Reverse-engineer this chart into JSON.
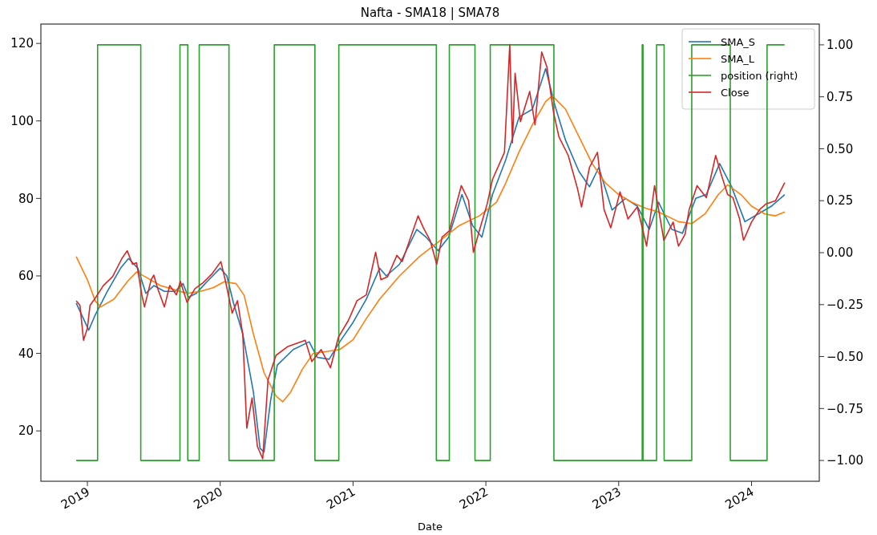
{
  "chart_data": {
    "type": "line",
    "title": "Nafta - SMA18 | SMA78",
    "xlabel": "Date",
    "xlim": [
      2018.65,
      2024.51
    ],
    "xticks": [
      2019,
      2020,
      2021,
      2022,
      2023,
      2024
    ],
    "ylim": [
      7,
      125
    ],
    "yticks": [
      20,
      40,
      60,
      80,
      100,
      120
    ],
    "y2lim": [
      -1.1,
      1.1
    ],
    "y2ticks": [
      {
        "value": -1,
        "label": "−1.00"
      },
      {
        "value": -0.75,
        "label": "−0.75"
      },
      {
        "value": -0.5,
        "label": "−0.50"
      },
      {
        "value": -0.25,
        "label": "−0.25"
      },
      {
        "value": 0,
        "label": "0.00"
      },
      {
        "value": 0.25,
        "label": "0.25"
      },
      {
        "value": 0.5,
        "label": "0.50"
      },
      {
        "value": 0.75,
        "label": "0.75"
      },
      {
        "value": 1,
        "label": "1.00"
      }
    ],
    "legend": "top right",
    "grid": false,
    "series": [
      {
        "name": "SMA_S",
        "color": "#1f77b4",
        "x": [
          2018.916,
          2018.97,
          2019.01,
          2019.06,
          2019.15,
          2019.25,
          2019.31,
          2019.38,
          2019.44,
          2019.5,
          2019.58,
          2019.66,
          2019.72,
          2019.76,
          2019.82,
          2019.9,
          2020.0,
          2020.05,
          2020.1,
          2020.17,
          2020.25,
          2020.3,
          2020.33,
          2020.38,
          2020.43,
          2020.55,
          2020.67,
          2020.73,
          2020.82,
          2020.9,
          2021.0,
          2021.1,
          2021.2,
          2021.25,
          2021.35,
          2021.48,
          2021.55,
          2021.64,
          2021.72,
          2021.82,
          2021.9,
          2021.97,
          2022.05,
          2022.15,
          2022.25,
          2022.35,
          2022.45,
          2022.52,
          2022.6,
          2022.7,
          2022.78,
          2022.85,
          2022.95,
          2023.05,
          2023.14,
          2023.23,
          2023.3,
          2023.4,
          2023.48,
          2023.58,
          2023.66,
          2023.76,
          2023.85,
          2023.95,
          2024.05,
          2024.15,
          2024.25
        ],
        "values": [
          53,
          49,
          46,
          50,
          56,
          62,
          64.5,
          62,
          55.5,
          57.5,
          56,
          56,
          58,
          54.5,
          55.5,
          58.5,
          62,
          60,
          53,
          45,
          30,
          15.5,
          14.5,
          28,
          37,
          41,
          43,
          39,
          38.5,
          43,
          48,
          54,
          62,
          60,
          63,
          72,
          70,
          66.5,
          70,
          81,
          73,
          70,
          81,
          90,
          101,
          103,
          113.5,
          104,
          95,
          87,
          83,
          88,
          77,
          80,
          78,
          72,
          79,
          72,
          71,
          80,
          81,
          89,
          83,
          74,
          76,
          78,
          81
        ]
      },
      {
        "name": "SMA_L",
        "color": "#ff7f0e",
        "x": [
          2018.916,
          2019.0,
          2019.06,
          2019.1,
          2019.2,
          2019.3,
          2019.37,
          2019.45,
          2019.55,
          2019.65,
          2019.75,
          2019.85,
          2019.95,
          2020.03,
          2020.12,
          2020.18,
          2020.25,
          2020.33,
          2020.42,
          2020.47,
          2020.53,
          2020.62,
          2020.7,
          2020.8,
          2020.9,
          2021.0,
          2021.1,
          2021.2,
          2021.35,
          2021.5,
          2021.65,
          2021.8,
          2021.95,
          2022.08,
          2022.15,
          2022.25,
          2022.35,
          2022.45,
          2022.5,
          2022.6,
          2022.7,
          2022.8,
          2022.9,
          2023.0,
          2023.1,
          2023.2,
          2023.3,
          2023.45,
          2023.55,
          2023.65,
          2023.75,
          2023.82,
          2023.92,
          2024.0,
          2024.1,
          2024.18,
          2024.25
        ],
        "values": [
          65,
          59,
          53.5,
          52,
          54,
          58.5,
          61,
          59.5,
          57.5,
          56.5,
          55.5,
          56,
          57,
          58.5,
          58,
          55,
          45,
          35,
          29,
          27.5,
          30,
          36,
          40,
          40.5,
          41,
          43.5,
          49,
          54,
          60,
          65,
          69,
          73,
          75.5,
          79,
          84,
          92,
          99,
          105,
          106.5,
          103,
          96,
          89,
          84,
          81,
          79,
          77.5,
          76.5,
          74,
          73.5,
          76,
          81,
          83.5,
          81,
          78,
          76,
          75.5,
          76.5
        ]
      },
      {
        "name": "position (right)",
        "color": "#2ca02c",
        "type": "step",
        "axis": "y2",
        "x": [
          2018.916,
          2019.077,
          2019.402,
          2019.697,
          2019.756,
          2019.842,
          2020.066,
          2020.407,
          2020.713,
          2020.893,
          2021.627,
          2021.725,
          2021.918,
          2022.033,
          2022.512,
          2023.177,
          2023.183,
          2023.285,
          2023.342,
          2023.55,
          2023.84,
          2024.117,
          2024.249
        ],
        "values": [
          -1,
          1,
          -1,
          1,
          -1,
          1,
          -1,
          1,
          -1,
          1,
          -1,
          1,
          -1,
          1,
          -1,
          1,
          -1,
          1,
          -1,
          1,
          -1,
          1,
          1
        ]
      },
      {
        "name": "Close",
        "color": "#d62728",
        "x": [
          2018.916,
          2018.944,
          2018.971,
          2019.0,
          2019.02,
          2019.06,
          2019.12,
          2019.19,
          2019.26,
          2019.3,
          2019.34,
          2019.37,
          2019.41,
          2019.43,
          2019.48,
          2019.5,
          2019.53,
          2019.58,
          2019.62,
          2019.67,
          2019.7,
          2019.75,
          2019.81,
          2019.87,
          2019.94,
          2020.005,
          2020.04,
          2020.09,
          2020.13,
          2020.17,
          2020.2,
          2020.24,
          2020.28,
          2020.32,
          2020.36,
          2020.42,
          2020.51,
          2020.64,
          2020.69,
          2020.76,
          2020.83,
          2020.89,
          2020.965,
          2021.03,
          2021.1,
          2021.17,
          2021.21,
          2021.26,
          2021.33,
          2021.37,
          2021.49,
          2021.53,
          2021.58,
          2021.63,
          2021.67,
          2021.725,
          2021.815,
          2021.87,
          2021.906,
          2021.95,
          2022.01,
          2022.05,
          2022.14,
          2022.18,
          2022.2,
          2022.22,
          2022.26,
          2022.33,
          2022.37,
          2022.42,
          2022.46,
          2022.51,
          2022.55,
          2022.62,
          2022.69,
          2022.72,
          2022.78,
          2022.84,
          2022.89,
          2022.94,
          2023.01,
          2023.07,
          2023.14,
          2023.21,
          2023.27,
          2023.34,
          2023.41,
          2023.45,
          2023.5,
          2023.53,
          2023.59,
          2023.66,
          2023.73,
          2023.77,
          2023.82,
          2023.86,
          2023.91,
          2023.94,
          2024.0,
          2024.06,
          2024.11,
          2024.18,
          2024.25
        ],
        "values": [
          53.6,
          52.4,
          43.4,
          46.5,
          52.4,
          54.3,
          57.5,
          59.8,
          64.5,
          66.5,
          63,
          63.4,
          55.1,
          52,
          59,
          60.2,
          56.7,
          52,
          57.5,
          55.1,
          58.6,
          53.2,
          56.7,
          58.2,
          60.6,
          63.7,
          58.6,
          50.4,
          53.6,
          44.9,
          20.7,
          28.5,
          16,
          12.8,
          33.2,
          39.5,
          41.8,
          43.4,
          37.9,
          41,
          36.3,
          44.2,
          48.5,
          53.6,
          55.1,
          66.1,
          59,
          59.8,
          65.3,
          63.7,
          75.5,
          72.4,
          69.2,
          63,
          70,
          71.6,
          83.3,
          79.4,
          66.1,
          71.6,
          78.6,
          84.9,
          91.9,
          119.7,
          94.3,
          112.3,
          99.8,
          107.6,
          99,
          117.8,
          113.9,
          102.1,
          95.9,
          91.1,
          82.5,
          77.8,
          88,
          91.9,
          77.1,
          72.4,
          81.7,
          74.7,
          77.8,
          67.7,
          83.3,
          69.2,
          73.9,
          67.7,
          70.8,
          77.1,
          83.3,
          80.2,
          91.1,
          86.4,
          81,
          80.2,
          74.7,
          69.2,
          73.9,
          77.1,
          78.6,
          79.4,
          84.1
        ]
      }
    ]
  }
}
